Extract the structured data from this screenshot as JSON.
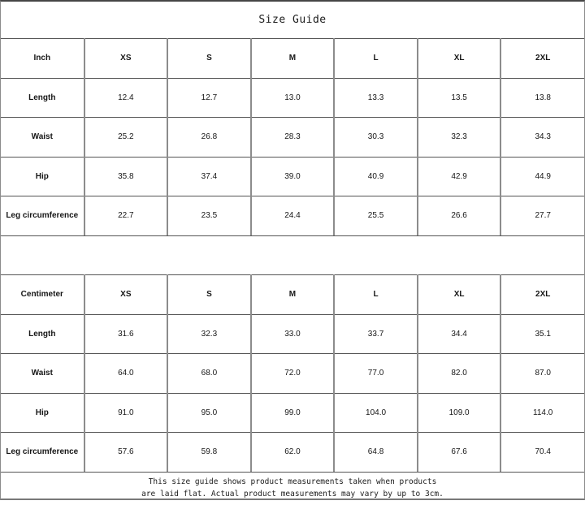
{
  "title": "Size Guide",
  "colors": {
    "background": "#ffffff",
    "horizontal_line": "#555555",
    "vertical_line": "#8c8c8c",
    "outer_top_border": "#454545",
    "text": "#161616"
  },
  "tables": [
    {
      "unit_label": "Inch",
      "sizes": [
        "XS",
        "S",
        "M",
        "L",
        "XL",
        "2XL"
      ],
      "rows": [
        {
          "label": "Length",
          "values": [
            "12.4",
            "12.7",
            "13.0",
            "13.3",
            "13.5",
            "13.8"
          ]
        },
        {
          "label": "Waist",
          "values": [
            "25.2",
            "26.8",
            "28.3",
            "30.3",
            "32.3",
            "34.3"
          ]
        },
        {
          "label": "Hip",
          "values": [
            "35.8",
            "37.4",
            "39.0",
            "40.9",
            "42.9",
            "44.9"
          ]
        },
        {
          "label": "Leg circumference",
          "values": [
            "22.7",
            "23.5",
            "24.4",
            "25.5",
            "26.6",
            "27.7"
          ]
        }
      ]
    },
    {
      "unit_label": "Centimeter",
      "sizes": [
        "XS",
        "S",
        "M",
        "L",
        "XL",
        "2XL"
      ],
      "rows": [
        {
          "label": "Length",
          "values": [
            "31.6",
            "32.3",
            "33.0",
            "33.7",
            "34.4",
            "35.1"
          ]
        },
        {
          "label": "Waist",
          "values": [
            "64.0",
            "68.0",
            "72.0",
            "77.0",
            "82.0",
            "87.0"
          ]
        },
        {
          "label": "Hip",
          "values": [
            "91.0",
            "95.0",
            "99.0",
            "104.0",
            "109.0",
            "114.0"
          ]
        },
        {
          "label": "Leg circumference",
          "values": [
            "57.6",
            "59.8",
            "62.0",
            "64.8",
            "67.6",
            "70.4"
          ]
        }
      ]
    }
  ],
  "footer": {
    "line1": "This size guide shows product measurements taken when products",
    "line2": "are laid flat. Actual product measurements may vary by up to 3cm."
  }
}
